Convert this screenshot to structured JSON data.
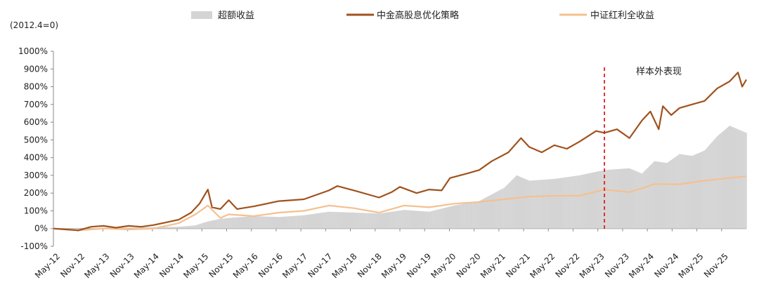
{
  "chart_data": {
    "type": "line",
    "title": "",
    "xlabel": "",
    "ylabel": "",
    "note": "(2012.4=0)",
    "annotation": "样本外表现",
    "annotation_date": "2023-05",
    "grid": false,
    "legend_position": "top",
    "ylim": [
      -100,
      1000
    ],
    "yticks": [
      "-100%",
      "0%",
      "100%",
      "200%",
      "300%",
      "400%",
      "500%",
      "600%",
      "700%",
      "800%",
      "900%",
      "1000%"
    ],
    "x_start": "2012-05",
    "x_end": "2026-03",
    "x_tick_labels": [
      "May-12",
      "Nov-12",
      "May-13",
      "Nov-13",
      "May-14",
      "Nov-14",
      "May-15",
      "Nov-15",
      "May-16",
      "Nov-16",
      "May-17",
      "Nov-17",
      "May-18",
      "Nov-18",
      "May-19",
      "Nov-19",
      "May-20",
      "Nov-20",
      "May-21",
      "Nov-21",
      "May-22",
      "Nov-22",
      "May-23",
      "Nov-23",
      "May-24",
      "Nov-24",
      "May-25",
      "Nov-25"
    ],
    "colors": {
      "excess": "#d4d4d4",
      "strategy": "#a0521c",
      "benchmark": "#f5c08f",
      "annotation_line": "#e02020"
    },
    "series": [
      {
        "name": "超额收益",
        "kind": "area",
        "points": [
          [
            "2012-05",
            0
          ],
          [
            "2012-11",
            -5
          ],
          [
            "2013-05",
            5
          ],
          [
            "2013-11",
            5
          ],
          [
            "2014-05",
            8
          ],
          [
            "2014-11",
            10
          ],
          [
            "2015-03",
            18
          ],
          [
            "2015-06",
            40
          ],
          [
            "2015-09",
            55
          ],
          [
            "2015-11",
            60
          ],
          [
            "2016-05",
            70
          ],
          [
            "2016-11",
            65
          ],
          [
            "2017-05",
            75
          ],
          [
            "2017-11",
            95
          ],
          [
            "2018-05",
            90
          ],
          [
            "2018-11",
            85
          ],
          [
            "2019-05",
            105
          ],
          [
            "2019-11",
            95
          ],
          [
            "2020-05",
            130
          ],
          [
            "2020-11",
            155
          ],
          [
            "2021-05",
            230
          ],
          [
            "2021-08",
            300
          ],
          [
            "2021-11",
            270
          ],
          [
            "2022-05",
            280
          ],
          [
            "2022-11",
            300
          ],
          [
            "2023-05",
            330
          ],
          [
            "2023-11",
            340
          ],
          [
            "2024-02",
            310
          ],
          [
            "2024-05",
            380
          ],
          [
            "2024-08",
            370
          ],
          [
            "2024-11",
            420
          ],
          [
            "2025-02",
            410
          ],
          [
            "2025-05",
            440
          ],
          [
            "2025-08",
            520
          ],
          [
            "2025-11",
            580
          ],
          [
            "2026-03",
            540
          ]
        ]
      },
      {
        "name": "中金高股息优化策略",
        "kind": "line",
        "points": [
          [
            "2012-05",
            0
          ],
          [
            "2012-08",
            -5
          ],
          [
            "2012-11",
            -10
          ],
          [
            "2013-02",
            10
          ],
          [
            "2013-05",
            15
          ],
          [
            "2013-08",
            5
          ],
          [
            "2013-11",
            15
          ],
          [
            "2014-02",
            10
          ],
          [
            "2014-05",
            20
          ],
          [
            "2014-08",
            35
          ],
          [
            "2014-11",
            50
          ],
          [
            "2015-02",
            90
          ],
          [
            "2015-04",
            140
          ],
          [
            "2015-06",
            220
          ],
          [
            "2015-07",
            120
          ],
          [
            "2015-09",
            110
          ],
          [
            "2015-11",
            160
          ],
          [
            "2016-01",
            110
          ],
          [
            "2016-05",
            125
          ],
          [
            "2016-11",
            155
          ],
          [
            "2017-05",
            165
          ],
          [
            "2017-11",
            215
          ],
          [
            "2018-01",
            240
          ],
          [
            "2018-05",
            215
          ],
          [
            "2018-11",
            175
          ],
          [
            "2019-02",
            205
          ],
          [
            "2019-04",
            235
          ],
          [
            "2019-08",
            200
          ],
          [
            "2019-11",
            220
          ],
          [
            "2020-02",
            215
          ],
          [
            "2020-04",
            285
          ],
          [
            "2020-08",
            310
          ],
          [
            "2020-11",
            330
          ],
          [
            "2021-02",
            380
          ],
          [
            "2021-06",
            430
          ],
          [
            "2021-09",
            510
          ],
          [
            "2021-11",
            460
          ],
          [
            "2022-02",
            430
          ],
          [
            "2022-05",
            470
          ],
          [
            "2022-08",
            450
          ],
          [
            "2022-11",
            490
          ],
          [
            "2023-03",
            550
          ],
          [
            "2023-05",
            540
          ],
          [
            "2023-08",
            560
          ],
          [
            "2023-11",
            510
          ],
          [
            "2024-02",
            610
          ],
          [
            "2024-04",
            660
          ],
          [
            "2024-06",
            560
          ],
          [
            "2024-07",
            690
          ],
          [
            "2024-09",
            640
          ],
          [
            "2024-11",
            680
          ],
          [
            "2025-02",
            700
          ],
          [
            "2025-05",
            720
          ],
          [
            "2025-08",
            790
          ],
          [
            "2025-11",
            830
          ],
          [
            "2026-01",
            880
          ],
          [
            "2026-02",
            800
          ],
          [
            "2026-03",
            840
          ]
        ]
      },
      {
        "name": "中证红利全收益",
        "kind": "line",
        "points": [
          [
            "2012-05",
            0
          ],
          [
            "2012-11",
            -10
          ],
          [
            "2013-05",
            0
          ],
          [
            "2013-11",
            -5
          ],
          [
            "2014-05",
            0
          ],
          [
            "2014-11",
            30
          ],
          [
            "2015-03",
            80
          ],
          [
            "2015-06",
            130
          ],
          [
            "2015-09",
            60
          ],
          [
            "2015-11",
            80
          ],
          [
            "2016-05",
            70
          ],
          [
            "2016-11",
            90
          ],
          [
            "2017-05",
            100
          ],
          [
            "2017-11",
            130
          ],
          [
            "2018-05",
            115
          ],
          [
            "2018-11",
            90
          ],
          [
            "2019-05",
            130
          ],
          [
            "2019-11",
            120
          ],
          [
            "2020-05",
            140
          ],
          [
            "2020-11",
            150
          ],
          [
            "2021-05",
            165
          ],
          [
            "2021-11",
            180
          ],
          [
            "2022-05",
            185
          ],
          [
            "2022-11",
            185
          ],
          [
            "2023-05",
            220
          ],
          [
            "2023-11",
            205
          ],
          [
            "2024-05",
            250
          ],
          [
            "2024-11",
            250
          ],
          [
            "2025-05",
            270
          ],
          [
            "2025-11",
            285
          ],
          [
            "2026-03",
            295
          ]
        ]
      }
    ]
  }
}
